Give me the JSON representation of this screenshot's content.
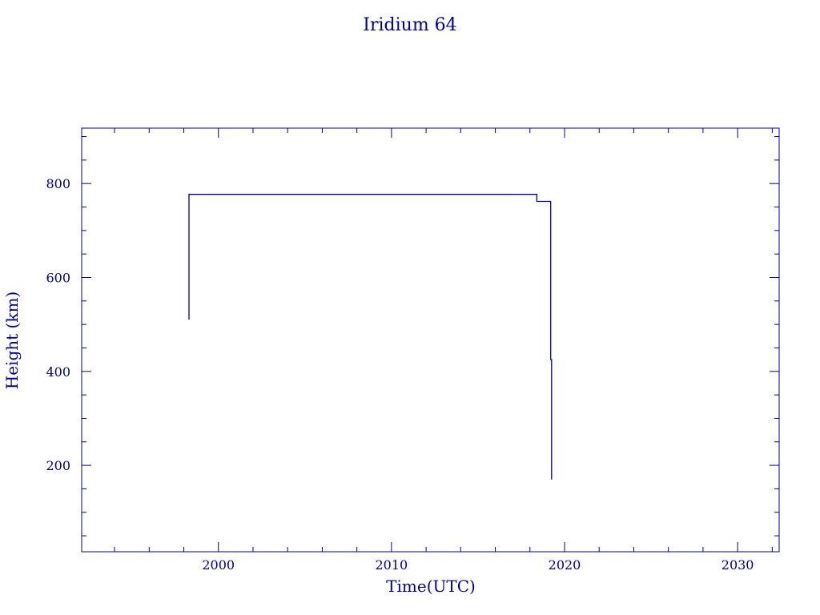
{
  "chart_data": {
    "type": "line",
    "title": "Iridium 64",
    "xlabel": "Time(UTC)",
    "ylabel": "Height (km)",
    "xlim": [
      1992.1,
      2032.4
    ],
    "ylim": [
      16,
      918
    ],
    "xticks": [
      2000,
      2010,
      2020,
      2030
    ],
    "yticks": [
      200,
      400,
      600,
      800
    ],
    "x_minor_step": 2,
    "y_minor_step": 50,
    "grid": false,
    "color": "#00009c",
    "series": [
      {
        "x": [
          1998.3,
          1998.3,
          1998.35,
          2018.4,
          2018.4,
          2019.2,
          2019.2,
          2019.25,
          2019.25
        ],
        "y": [
          510,
          777,
          777,
          777,
          762,
          762,
          425,
          425,
          170
        ]
      }
    ]
  }
}
